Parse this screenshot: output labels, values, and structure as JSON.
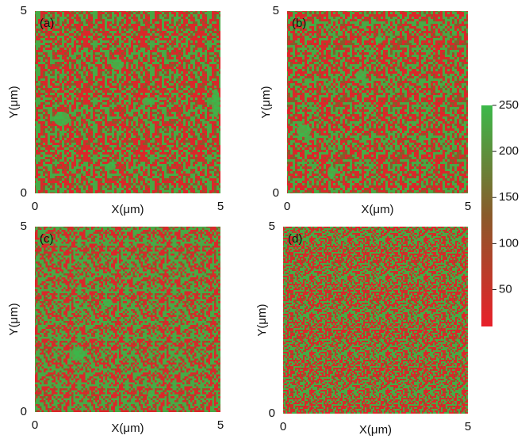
{
  "chart_data": [
    {
      "type": "heatmap",
      "panel_label": "(a)",
      "xlabel": "X(μm)",
      "ylabel": "Y(μm)",
      "xlim": [
        0,
        5
      ],
      "ylim": [
        0,
        5
      ],
      "xticks": [
        0,
        5
      ],
      "yticks": [
        0,
        5
      ]
    },
    {
      "type": "heatmap",
      "panel_label": "(b)",
      "xlabel": "X(μm)",
      "ylabel": "Y(μm)",
      "xlim": [
        0,
        5
      ],
      "ylim": [
        0,
        5
      ],
      "xticks": [
        0,
        5
      ],
      "yticks": [
        0,
        5
      ]
    },
    {
      "type": "heatmap",
      "panel_label": "(c)",
      "xlabel": "X(μm)",
      "ylabel": "Y(μm)",
      "xlim": [
        0,
        5
      ],
      "ylim": [
        0,
        5
      ],
      "xticks": [
        0,
        5
      ],
      "yticks": [
        0,
        5
      ]
    },
    {
      "type": "heatmap",
      "panel_label": "(d)",
      "xlabel": "X(μm)",
      "ylabel": "Y(μm)",
      "xlim": [
        0,
        5
      ],
      "ylim": [
        0,
        5
      ],
      "xticks": [
        0,
        5
      ],
      "yticks": [
        0,
        5
      ]
    },
    {
      "type": "colorbar",
      "ylim": [
        10,
        250
      ],
      "yticks": [
        50,
        100,
        150,
        200,
        250
      ],
      "colors": [
        "#e8202a",
        "#8a5a2a",
        "#3cb84a"
      ]
    }
  ]
}
